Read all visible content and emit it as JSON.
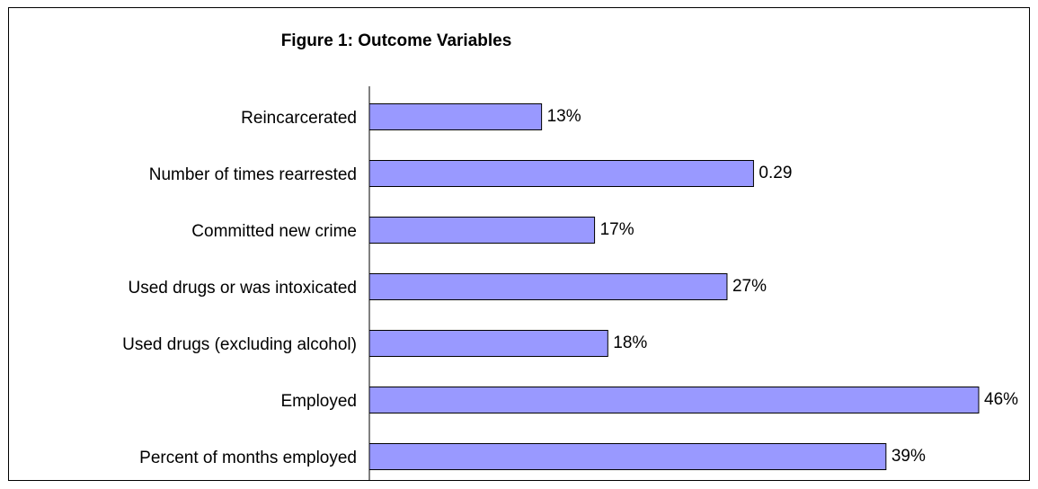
{
  "chart_data": {
    "type": "bar",
    "orientation": "horizontal",
    "title": "Figure 1: Outcome Variables",
    "xlabel": "",
    "ylabel": "",
    "categories": [
      "Reincarcerated",
      "Number of times rearrested",
      "Committed new crime",
      "Used drugs or was intoxicated",
      "Used drugs (excluding alcohol)",
      "Employed",
      "Percent of months employed"
    ],
    "values": [
      0.13,
      0.29,
      0.17,
      0.27,
      0.18,
      0.46,
      0.39
    ],
    "value_labels": [
      "13%",
      "0.29",
      "17%",
      "27%",
      "18%",
      "46%",
      "39%"
    ],
    "xlim": [
      0,
      0.46
    ],
    "grid": false,
    "legend": "none",
    "colors": {
      "bar_fill": "#9999FF",
      "bar_stroke": "#000000",
      "axis": "#000000",
      "text": "#000000",
      "background": "#FFFFFF"
    }
  }
}
